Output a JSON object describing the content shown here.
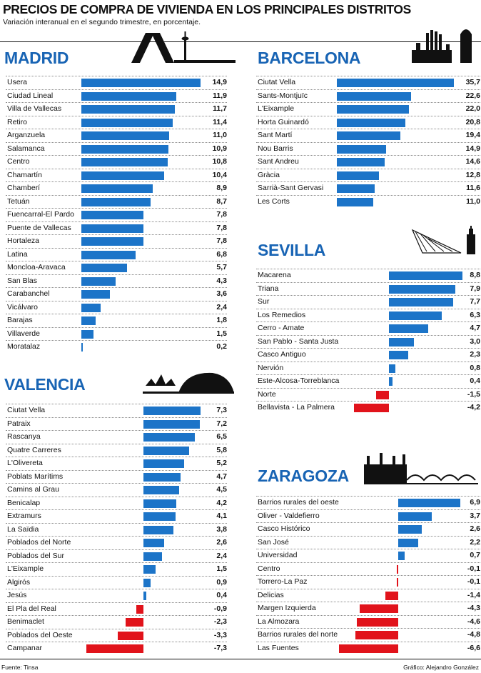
{
  "header": {
    "title": "PRECIOS DE COMPRA DE VIVIENDA EN LOS PRINCIPALES DISTRITOS",
    "subtitle": "Variación interanual en el segundo trimestre, en porcentaje."
  },
  "footer": {
    "source": "Fuente: Tinsa",
    "credit": "Gráfico: Alejandro González"
  },
  "colors": {
    "city": "#1864b4",
    "positive": "#1c74c8",
    "negative": "#e1131b"
  },
  "icons": [
    "madrid-skyline-icon",
    "barcelona-skyline-icon",
    "sevilla-skyline-icon",
    "valencia-skyline-icon",
    "zaragoza-skyline-icon"
  ],
  "chart_data": [
    {
      "type": "bar",
      "orientation": "horizontal",
      "title": "MADRID",
      "xlim": [
        -8,
        15
      ],
      "categories": [
        "Usera",
        "Ciudad Lineal",
        "Villa de Vallecas",
        "Retiro",
        "Arganzuela",
        "Salamanca",
        "Centro",
        "Chamartín",
        "Chamberí",
        "Tetuán",
        "Fuencarral-El Pardo",
        "Puente de Vallecas",
        "Hortaleza",
        "Latina",
        "Moncloa-Aravaca",
        "San Blas",
        "Carabanchel",
        "Vicálvaro",
        "Barajas",
        "Villaverde",
        "Moratalaz"
      ],
      "values": [
        14.9,
        11.9,
        11.7,
        11.4,
        11.0,
        10.9,
        10.8,
        10.4,
        8.9,
        8.7,
        7.8,
        7.8,
        7.8,
        6.8,
        5.7,
        4.3,
        3.6,
        2.4,
        1.8,
        1.5,
        0.2
      ],
      "labels": [
        "14,9",
        "11,9",
        "11,7",
        "11,4",
        "11,0",
        "10,9",
        "10,8",
        "10,4",
        "8,9",
        "8,7",
        "7,8",
        "7,8",
        "7,8",
        "6,8",
        "5,7",
        "4,3",
        "3,6",
        "2,4",
        "1,8",
        "1,5",
        "0,2"
      ]
    },
    {
      "type": "bar",
      "orientation": "horizontal",
      "title": "BARCELONA",
      "xlim": [
        -8,
        36
      ],
      "categories": [
        "Ciutat Vella",
        "Sants-Montjuïc",
        "L'Eixample",
        "Horta Guinardó",
        "Sant Martí",
        "Nou Barris",
        "Sant Andreu",
        "Gràcia",
        "Sarrià-Sant Gervasi",
        "Les Corts"
      ],
      "values": [
        35.7,
        22.6,
        22.0,
        20.8,
        19.4,
        14.9,
        14.6,
        12.8,
        11.6,
        11.0
      ],
      "labels": [
        "35,7",
        "22,6",
        "22,0",
        "20,8",
        "19,4",
        "14,9",
        "14,6",
        "12,8",
        "11,6",
        "11,0"
      ]
    },
    {
      "type": "bar",
      "orientation": "horizontal",
      "title": "SEVILLA",
      "xlim": [
        -5,
        9
      ],
      "categories": [
        "Macarena",
        "Triana",
        "Sur",
        "Los Remedios",
        "Cerro - Amate",
        "San Pablo - Santa Justa",
        "Casco Antiguo",
        "Nervión",
        "Este-Alcosa-Torreblanca",
        "Norte",
        "Bellavista - La Palmera"
      ],
      "values": [
        8.8,
        7.9,
        7.7,
        6.3,
        4.7,
        3.0,
        2.3,
        0.8,
        0.4,
        -1.5,
        -4.2
      ],
      "labels": [
        "8,8",
        "7,9",
        "7,7",
        "6,3",
        "4,7",
        "3,0",
        "2,3",
        "0,8",
        "0,4",
        "-1,5",
        "-4,2"
      ]
    },
    {
      "type": "bar",
      "orientation": "horizontal",
      "title": "VALENCIA",
      "xlim": [
        -8,
        8
      ],
      "categories": [
        "Ciutat Vella",
        "Patraix",
        "Rascanya",
        "Quatre Carreres",
        "L'Olivereta",
        "Poblats Marítims",
        "Camins al Grau",
        "Benicalap",
        "Extramurs",
        "La Saïdia",
        "Poblados del Norte",
        "Poblados del Sur",
        "L'Eixample",
        "Algirós",
        "Jesús",
        "El Pla del Real",
        "Benimaclet",
        "Poblados del Oeste",
        "Campanar"
      ],
      "values": [
        7.3,
        7.2,
        6.5,
        5.8,
        5.2,
        4.7,
        4.5,
        4.2,
        4.1,
        3.8,
        2.6,
        2.4,
        1.5,
        0.9,
        0.4,
        -0.9,
        -2.3,
        -3.3,
        -7.3
      ],
      "labels": [
        "7,3",
        "7,2",
        "6,5",
        "5,8",
        "5,2",
        "4,7",
        "4,5",
        "4,2",
        "4,1",
        "3,8",
        "2,6",
        "2,4",
        "1,5",
        "0,9",
        "0,4",
        "-0,9",
        "-2,3",
        "-3,3",
        "-7,3"
      ]
    },
    {
      "type": "bar",
      "orientation": "horizontal",
      "title": "ZARAGOZA",
      "xlim": [
        -7,
        7
      ],
      "categories": [
        "Barrios rurales del oeste",
        "Oliver - Valdefierro",
        "Casco Histórico",
        "San José",
        "Universidad",
        "Centro",
        "Torrero-La Paz",
        "Delicias",
        "Margen Izquierda",
        "La Almozara",
        "Barrios rurales del norte",
        "Las Fuentes"
      ],
      "values": [
        6.9,
        3.7,
        2.6,
        2.2,
        0.7,
        -0.1,
        -0.1,
        -1.4,
        -4.3,
        -4.6,
        -4.8,
        -6.6
      ],
      "labels": [
        "6,9",
        "3,7",
        "2,6",
        "2,2",
        "0,7",
        "-0,1",
        "-0,1",
        "-1,4",
        "-4,3",
        "-4,6",
        "-4,8",
        "-6,6"
      ]
    }
  ]
}
